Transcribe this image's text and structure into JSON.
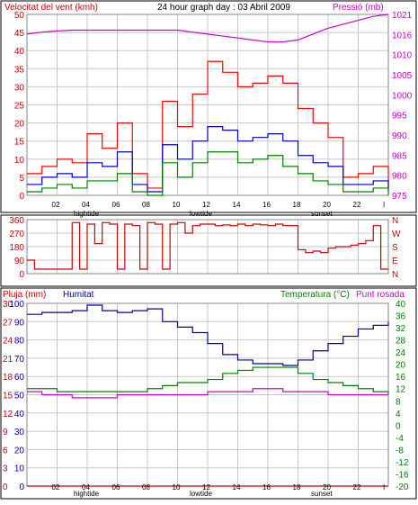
{
  "title": "24 hour graph day : 03 Abril 2009",
  "colors": {
    "wind": "#e00000",
    "gust": "#ff0000",
    "avg": "#0000cc",
    "low": "#008000",
    "pressure": "#cc00cc",
    "direction": "#cc0000",
    "rain": "#cc0000",
    "humidity": "#0000aa",
    "temp": "#008000",
    "dew": "#cc00cc",
    "grid": "#c8c8c8"
  },
  "hour_ticks": [
    "02",
    "04",
    "06",
    "08",
    "10",
    "12",
    "14",
    "16",
    "18",
    "20",
    "22",
    "I"
  ],
  "markers": {
    "hightide_1": "hightide",
    "lowtide": "lowtide",
    "sunset": "sunset",
    "hightide_2": "hightide"
  },
  "chart_data": [
    {
      "type": "line",
      "name": "wind",
      "title": "24 hour graph day : 03 Abril 2009",
      "left_label": "Velocitat del vent (kmh)",
      "right_label": "Pressió (mb)",
      "left_ticks": [
        "0",
        "5",
        "10",
        "15",
        "20",
        "25",
        "30",
        "35",
        "40",
        "45",
        "50"
      ],
      "right_ticks": [
        "975",
        "980",
        "985",
        "990",
        "995",
        "1000",
        "1005",
        "1010",
        "1016",
        "1021"
      ],
      "ylim_left": [
        0,
        50
      ],
      "ylim_right": [
        975,
        1021
      ],
      "x": [
        0,
        1,
        2,
        3,
        4,
        5,
        6,
        7,
        8,
        9,
        10,
        11,
        12,
        13,
        14,
        15,
        16,
        17,
        18,
        19,
        20,
        21,
        22,
        23,
        24
      ],
      "series": [
        {
          "key": "gust",
          "values": [
            6,
            8,
            10,
            9,
            17,
            13,
            20,
            6,
            2,
            26,
            19,
            28,
            37,
            34,
            30,
            31,
            33,
            31,
            24,
            20,
            16,
            5,
            6,
            8,
            2
          ]
        },
        {
          "key": "avg",
          "values": [
            3,
            5,
            6,
            5,
            9,
            8,
            12,
            3,
            1,
            14,
            10,
            15,
            19,
            18,
            15,
            16,
            17,
            15,
            11,
            9,
            8,
            3,
            3,
            4,
            1
          ]
        },
        {
          "key": "low",
          "values": [
            1,
            2,
            3,
            2,
            4,
            4,
            6,
            1,
            0,
            9,
            5,
            9,
            12,
            12,
            9,
            10,
            11,
            8,
            6,
            4,
            3,
            1,
            1,
            2,
            0
          ]
        },
        {
          "key": "pressure",
          "values": [
            1016,
            1016.5,
            1016.8,
            1017,
            1017,
            1017,
            1017,
            1017,
            1017,
            1017,
            1017,
            1016.5,
            1016,
            1015.5,
            1015,
            1014.5,
            1014,
            1014,
            1014.5,
            1016,
            1017.5,
            1018.5,
            1019.5,
            1020.5,
            1021
          ]
        }
      ]
    },
    {
      "type": "line",
      "name": "direction",
      "left_ticks": [
        "0",
        "90",
        "180",
        "270",
        "360"
      ],
      "right_ticks": [
        "N",
        "E",
        "S",
        "W",
        "N"
      ],
      "ylim": [
        0,
        360
      ],
      "x": [
        0,
        0.5,
        1,
        1.5,
        2,
        2.5,
        3,
        3.5,
        4,
        4.5,
        5,
        5.5,
        6,
        6.5,
        7,
        7.5,
        8,
        8.5,
        9,
        9.5,
        10,
        10.5,
        11,
        11.5,
        12,
        12.5,
        13,
        13.5,
        14,
        14.5,
        15,
        15.5,
        16,
        16.5,
        17,
        17.5,
        18,
        18.5,
        19,
        19.5,
        20,
        20.5,
        21,
        21.5,
        22,
        22.5,
        23,
        23.5,
        24
      ],
      "values": [
        90,
        30,
        30,
        30,
        30,
        30,
        340,
        30,
        330,
        200,
        340,
        330,
        30,
        330,
        320,
        30,
        340,
        330,
        30,
        330,
        340,
        270,
        320,
        330,
        330,
        320,
        325,
        320,
        330,
        320,
        330,
        325,
        320,
        330,
        320,
        320,
        160,
        140,
        150,
        140,
        170,
        180,
        180,
        190,
        200,
        220,
        320,
        30,
        30
      ]
    },
    {
      "type": "line",
      "name": "climate",
      "left_label": "Pluja (mm)",
      "left2_label": "Humitat",
      "right_label": "Temperatura (°C)",
      "right2_label": "Punt rosada",
      "rain_ticks": [
        "0",
        "3",
        "6",
        "9",
        "12",
        "15",
        "18",
        "21",
        "24",
        "27",
        "30"
      ],
      "humidity_ticks": [
        "0",
        "10",
        "20",
        "30",
        "40",
        "50",
        "60",
        "70",
        "80",
        "90",
        "100"
      ],
      "temp_ticks": [
        "-20",
        "-16",
        "-12",
        "-8",
        "-4",
        "0",
        "4",
        "8",
        "12",
        "16",
        "20",
        "24",
        "28",
        "32",
        "36",
        "40"
      ],
      "ylim_humidity": [
        0,
        100
      ],
      "ylim_temp": [
        -20,
        40
      ],
      "ylim_rain": [
        0,
        30
      ],
      "x": [
        0,
        1,
        2,
        3,
        4,
        5,
        6,
        7,
        8,
        9,
        10,
        11,
        12,
        13,
        14,
        15,
        16,
        17,
        18,
        19,
        20,
        21,
        22,
        23,
        24
      ],
      "series": [
        {
          "key": "humidity",
          "values": [
            94,
            95,
            95,
            96,
            99,
            96,
            95,
            96,
            97,
            90,
            87,
            84,
            78,
            72,
            69,
            67,
            67,
            66,
            69,
            74,
            78,
            82,
            86,
            88,
            90
          ]
        },
        {
          "key": "temp",
          "values": [
            12,
            12,
            11,
            11,
            11,
            11,
            11,
            11,
            12,
            13,
            14,
            14,
            15,
            17,
            18,
            19,
            19,
            19,
            17,
            15,
            14,
            13,
            12,
            11,
            10
          ]
        },
        {
          "key": "dew",
          "values": [
            11,
            10,
            10,
            9,
            9,
            9,
            10,
            10,
            10,
            10,
            10,
            10,
            11,
            11,
            11,
            12,
            12,
            11,
            11,
            11,
            10,
            10,
            10,
            10,
            10
          ]
        },
        {
          "key": "rain",
          "values": [
            0,
            0,
            0,
            0,
            0,
            0,
            0,
            0,
            0,
            0,
            0,
            0,
            0,
            0,
            0,
            0,
            0,
            0,
            0,
            0,
            0,
            0,
            0,
            0,
            0
          ]
        }
      ]
    }
  ]
}
